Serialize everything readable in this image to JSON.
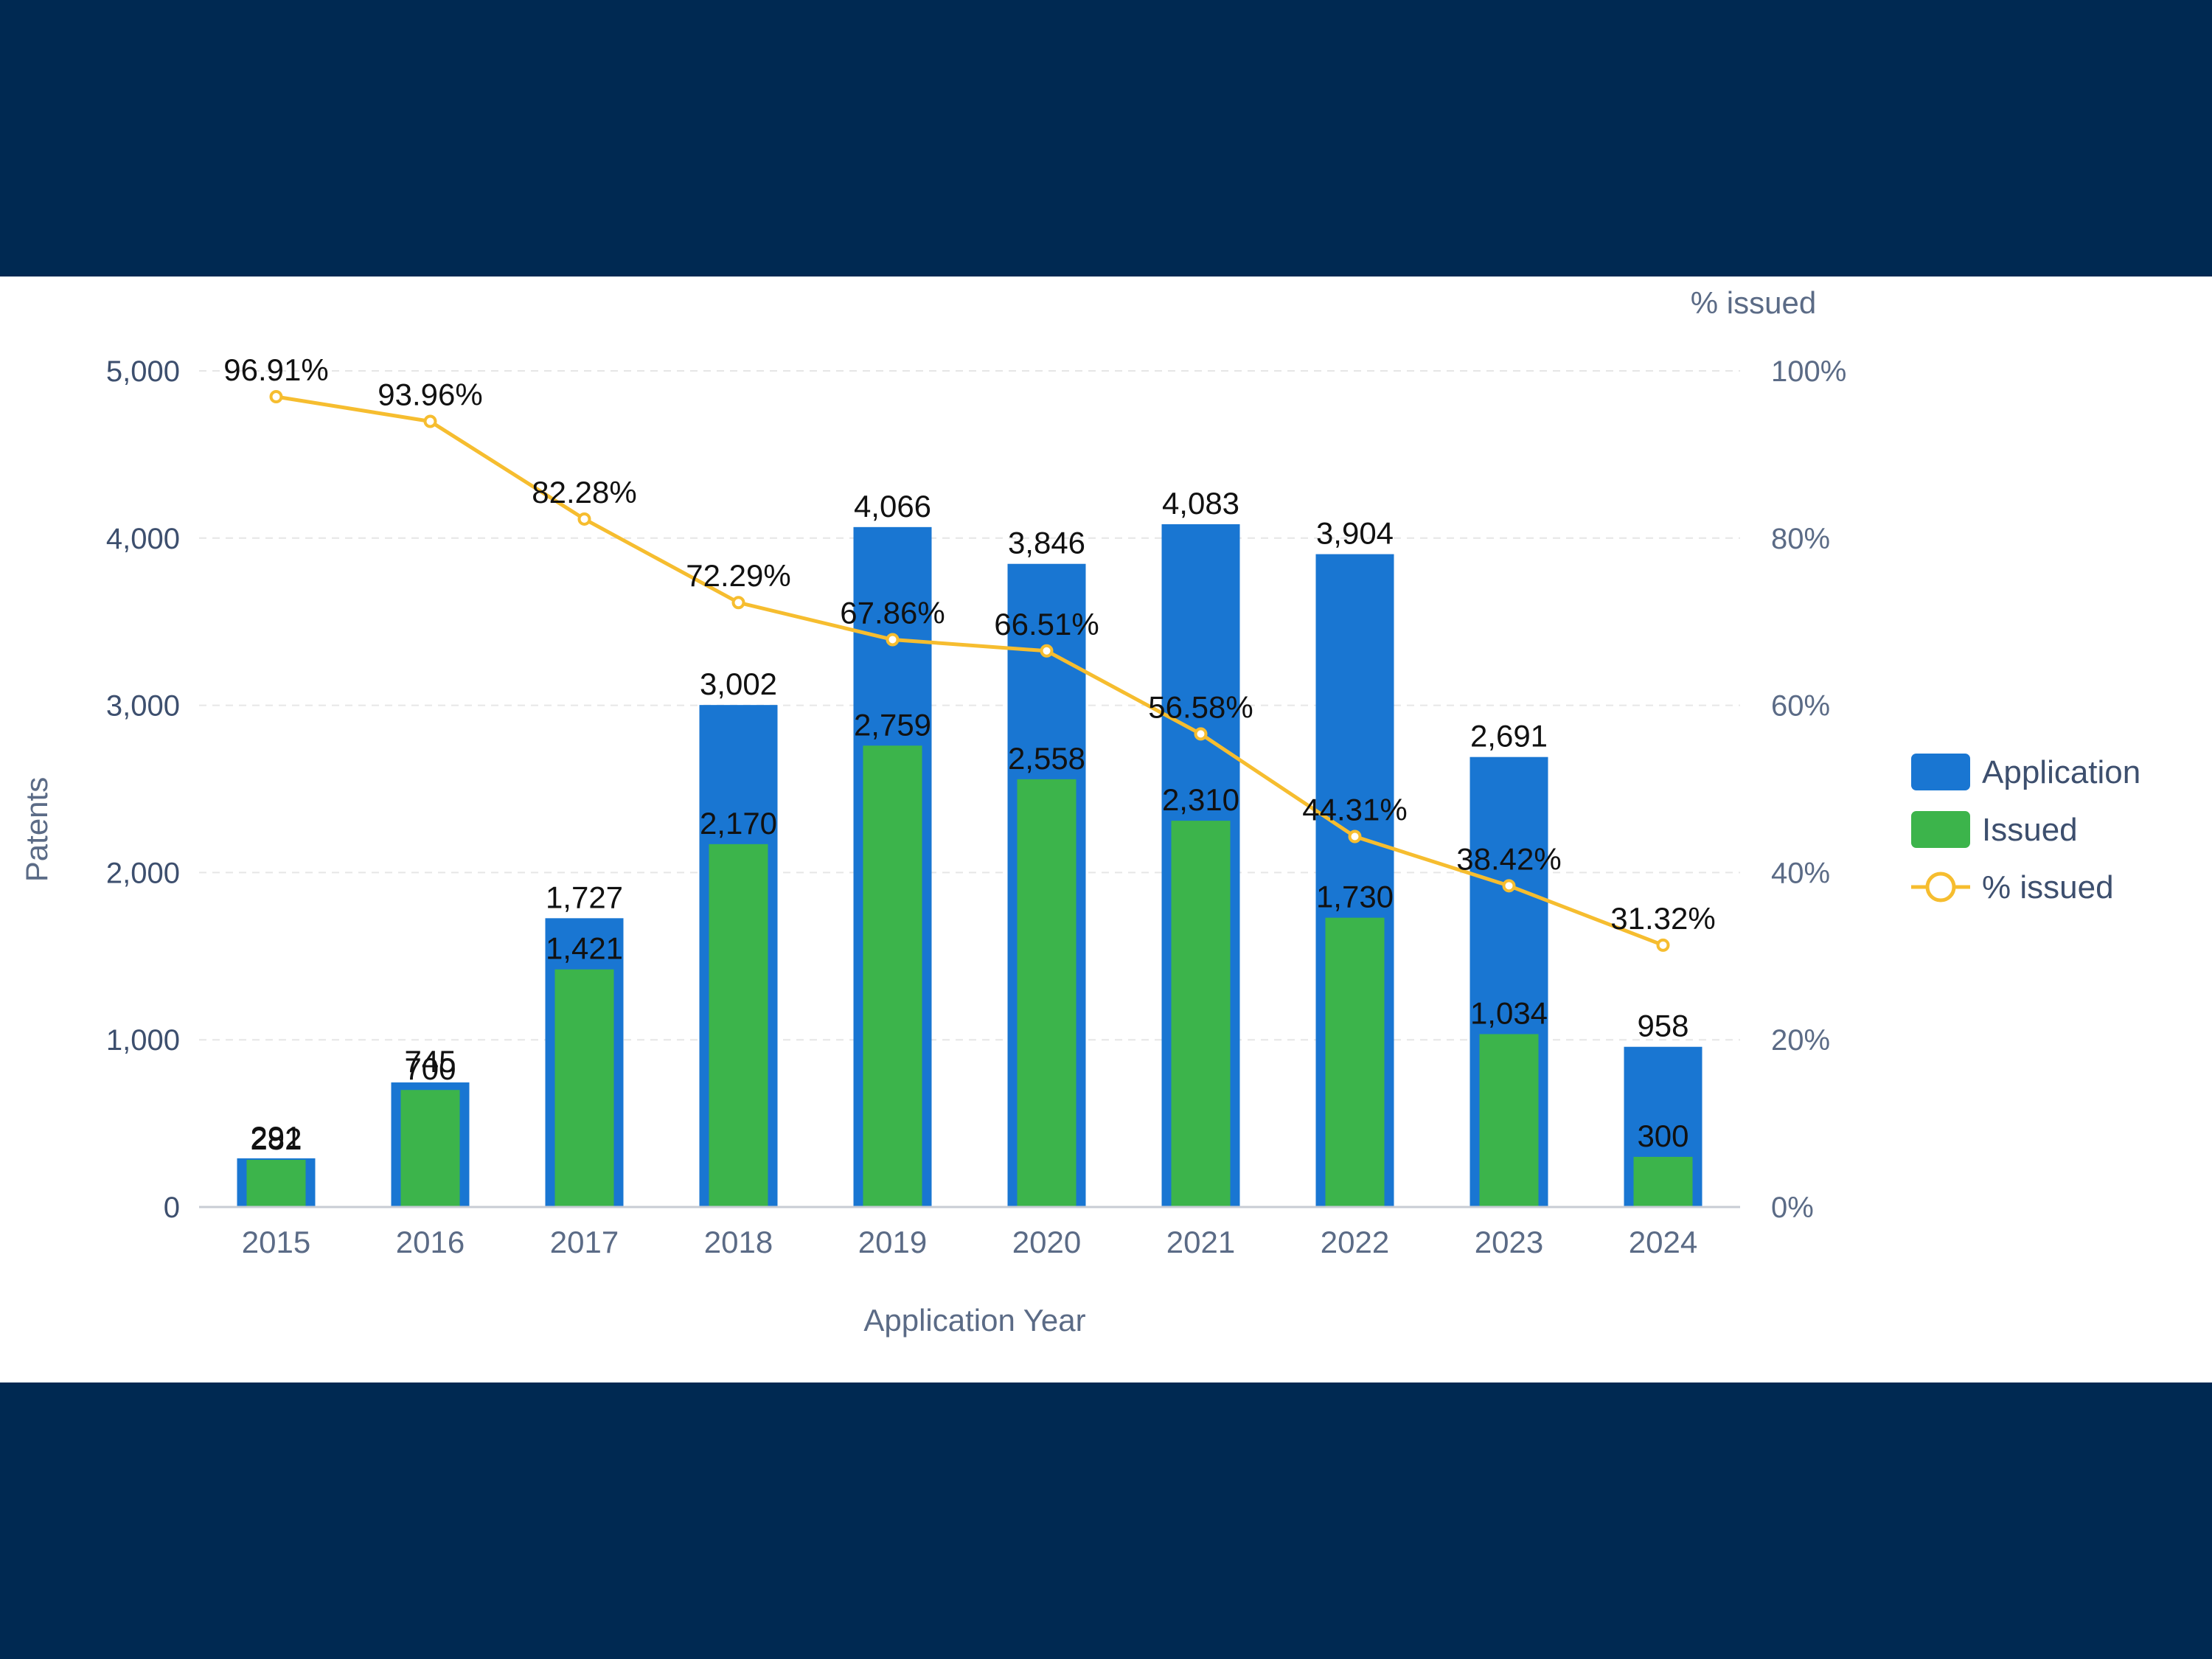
{
  "colors": {
    "background": "#002952",
    "panel": "#ffffff",
    "application": "#1976d2",
    "issued": "#3cb44b",
    "percent_line": "#f6bd2f",
    "gridline": "#e6e6e6",
    "axis_text": "#5b6b86"
  },
  "chart_data": {
    "type": "bar",
    "categories": [
      "2015",
      "2016",
      "2017",
      "2018",
      "2019",
      "2020",
      "2021",
      "2022",
      "2023",
      "2024"
    ],
    "series": [
      {
        "name": "Application",
        "type": "bar",
        "axis": "left",
        "values": [
          291,
          745,
          1727,
          3002,
          4066,
          3846,
          4083,
          3904,
          2691,
          958
        ],
        "labels": [
          "291",
          "745",
          "1,727",
          "3,002",
          "4,066",
          "3,846",
          "4,083",
          "3,904",
          "2,691",
          "958"
        ]
      },
      {
        "name": "Issued",
        "type": "bar",
        "axis": "left",
        "values": [
          282,
          700,
          1421,
          2170,
          2759,
          2558,
          2310,
          1730,
          1034,
          300
        ],
        "labels": [
          "282",
          "700",
          "1,421",
          "2,170",
          "2,759",
          "2,558",
          "2,310",
          "1,730",
          "1,034",
          "300"
        ]
      },
      {
        "name": "% issued",
        "type": "line",
        "axis": "right",
        "values": [
          96.91,
          93.96,
          82.28,
          72.29,
          67.86,
          66.51,
          56.58,
          44.31,
          38.42,
          31.32
        ],
        "labels": [
          "96.91%",
          "93.96%",
          "82.28%",
          "72.29%",
          "67.86%",
          "66.51%",
          "56.58%",
          "44.31%",
          "38.42%",
          "31.32%"
        ]
      }
    ],
    "xlabel": "Application Year",
    "ylabel": "Patents",
    "y2label": "% issued",
    "ylim": [
      0,
      5000
    ],
    "y2lim": [
      0,
      100
    ],
    "yticks": [
      "0",
      "1,000",
      "2,000",
      "3,000",
      "4,000",
      "5,000"
    ],
    "y2ticks": [
      "0%",
      "20%",
      "40%",
      "60%",
      "80%",
      "100%"
    ],
    "legend": [
      "Application",
      "Issued",
      "% issued"
    ],
    "legend_position": "right",
    "grid": true
  }
}
